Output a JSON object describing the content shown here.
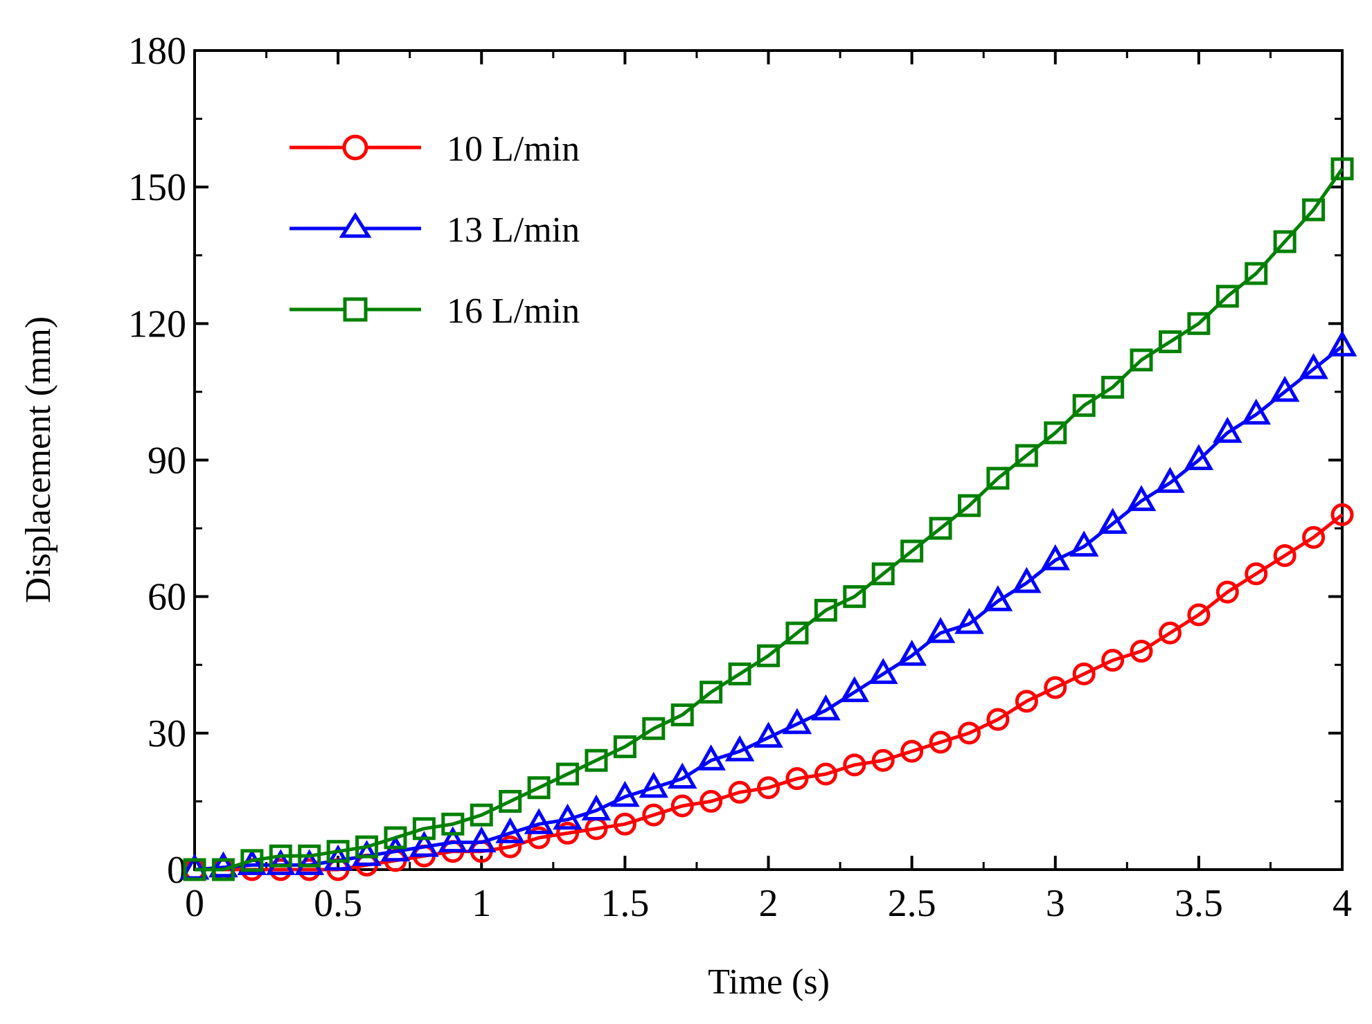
{
  "chart_data": {
    "type": "line",
    "title": "",
    "xlabel": "Time (s)",
    "ylabel": "Displacement (mm)",
    "xlim": [
      0,
      4
    ],
    "ylim": [
      0,
      180
    ],
    "xticks": [
      "0",
      "0.5",
      "1",
      "1.5",
      "2",
      "2.5",
      "3",
      "3.5",
      "4"
    ],
    "xtick_values": [
      0,
      0.5,
      1,
      1.5,
      2,
      2.5,
      3,
      3.5,
      4
    ],
    "yticks": [
      "0",
      "30",
      "60",
      "90",
      "120",
      "150",
      "180"
    ],
    "ytick_values": [
      0,
      30,
      60,
      90,
      120,
      150,
      180
    ],
    "legend_position": "top-left",
    "grid": false,
    "x": [
      0,
      0.1,
      0.2,
      0.3,
      0.4,
      0.5,
      0.6,
      0.7,
      0.8,
      0.9,
      1.0,
      1.1,
      1.2,
      1.3,
      1.4,
      1.5,
      1.6,
      1.7,
      1.8,
      1.9,
      2.0,
      2.1,
      2.2,
      2.3,
      2.4,
      2.5,
      2.6,
      2.7,
      2.8,
      2.9,
      3.0,
      3.1,
      3.2,
      3.3,
      3.4,
      3.5,
      3.6,
      3.7,
      3.8,
      3.9,
      4.0
    ],
    "series": [
      {
        "name": "10 L/min",
        "color": "#ff0000",
        "marker": "circle",
        "values": [
          0,
          0,
          0,
          0,
          0,
          0,
          1,
          2,
          3,
          4,
          4,
          5,
          7,
          8,
          9,
          10,
          12,
          14,
          15,
          17,
          18,
          20,
          21,
          23,
          24,
          26,
          28,
          30,
          33,
          37,
          40,
          43,
          46,
          48,
          52,
          56,
          61,
          65,
          69,
          73,
          78
        ]
      },
      {
        "name": "13 L/min",
        "color": "#0000ff",
        "marker": "triangle",
        "values": [
          0,
          0.5,
          1,
          1,
          1,
          2,
          3,
          4,
          5,
          6,
          6,
          8,
          10,
          11,
          13,
          16,
          18,
          20,
          24,
          26,
          29,
          32,
          35,
          39,
          43,
          47,
          52,
          54,
          59,
          63,
          68,
          71,
          76,
          81,
          85,
          90,
          96,
          100,
          105,
          110,
          115
        ]
      },
      {
        "name": "16 L/min",
        "color": "#008000",
        "marker": "square",
        "values": [
          0,
          0,
          2,
          3,
          3,
          4,
          5,
          7,
          9,
          10,
          12,
          15,
          18,
          21,
          24,
          27,
          31,
          34,
          39,
          43,
          47,
          52,
          57,
          60,
          65,
          70,
          75,
          80,
          86,
          91,
          96,
          102,
          106,
          112,
          116,
          120,
          126,
          131,
          138,
          145,
          154
        ]
      }
    ]
  }
}
